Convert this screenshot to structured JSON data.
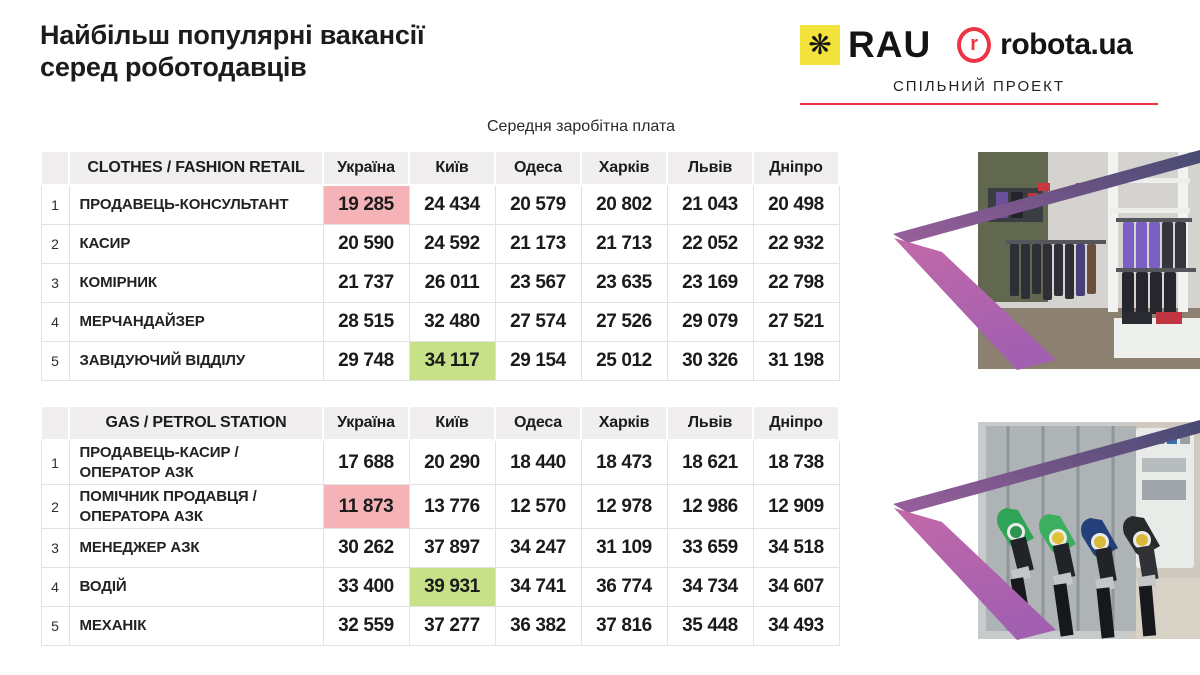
{
  "slide": {
    "title": "Найбільш популярні вакансії\nсеред роботодавців",
    "subtitle": "Середня заробітна плата"
  },
  "branding": {
    "rau_label": "RAU",
    "rau_icon_glyph": "❋",
    "rau_icon_bg": "#f1e23c",
    "robota_label": "robota.ua",
    "robota_icon_letter": "r",
    "robota_red": "#ee3344",
    "project_label": "СПІЛЬНИЙ ПРОЕКТ"
  },
  "highlight_colors": {
    "lowest_bg": "#f5b3b8",
    "highest_bg": "#c6e187"
  },
  "chart_data": [
    {
      "type": "table",
      "category": "CLOTHES / FASHION RETAIL",
      "columns": [
        "Україна",
        "Київ",
        "Одеса",
        "Харків",
        "Львів",
        "Дніпро"
      ],
      "rows": [
        {
          "num": "1",
          "title": "ПРОДАВЕЦЬ-КОНСУЛЬТАНТ",
          "values": [
            "19 285",
            "24 434",
            "20 579",
            "20 802",
            "21 043",
            "20 498"
          ],
          "lowest": 0
        },
        {
          "num": "2",
          "title": "КАСИР",
          "values": [
            "20 590",
            "24 592",
            "21 173",
            "21 713",
            "22 052",
            "22 932"
          ]
        },
        {
          "num": "3",
          "title": "КОМІРНИК",
          "values": [
            "21 737",
            "26 011",
            "23 567",
            "23 635",
            "23 169",
            "22 798"
          ]
        },
        {
          "num": "4",
          "title": "МЕРЧАНДАЙЗЕР",
          "values": [
            "28 515",
            "32 480",
            "27 574",
            "27 526",
            "29 079",
            "27 521"
          ]
        },
        {
          "num": "5",
          "title": "ЗАВІДУЮЧИЙ ВІДДІЛУ",
          "values": [
            "29 748",
            "34 117",
            "29 154",
            "25 012",
            "30 326",
            "31 198"
          ],
          "highest": 1
        }
      ]
    },
    {
      "type": "table",
      "category": "GAS / PETROL STATION",
      "columns": [
        "Україна",
        "Київ",
        "Одеса",
        "Харків",
        "Львів",
        "Дніпро"
      ],
      "rows": [
        {
          "num": "1",
          "title": "ПРОДАВЕЦЬ-КАСИР /\nОПЕРАТОР АЗК",
          "values": [
            "17 688",
            "20 290",
            "18 440",
            "18 473",
            "18 621",
            "18 738"
          ]
        },
        {
          "num": "2",
          "title": "ПОМІЧНИК ПРОДАВЦЯ /\nОПЕРАТОРА АЗК",
          "values": [
            "11 873",
            "13 776",
            "12 570",
            "12 978",
            "12 986",
            "12 909"
          ],
          "lowest": 0
        },
        {
          "num": "3",
          "title": "МЕНЕДЖЕР АЗК",
          "values": [
            "30 262",
            "37 897",
            "34 247",
            "31 109",
            "33 659",
            "34 518"
          ]
        },
        {
          "num": "4",
          "title": "ВОДІЙ",
          "values": [
            "33 400",
            "39 931",
            "34 741",
            "36 774",
            "34 734",
            "34 607"
          ],
          "highest": 1
        },
        {
          "num": "5",
          "title": "МЕХАНІК",
          "values": [
            "32 559",
            "37 277",
            "36 382",
            "37 816",
            "35 448",
            "34 493"
          ]
        }
      ]
    }
  ]
}
